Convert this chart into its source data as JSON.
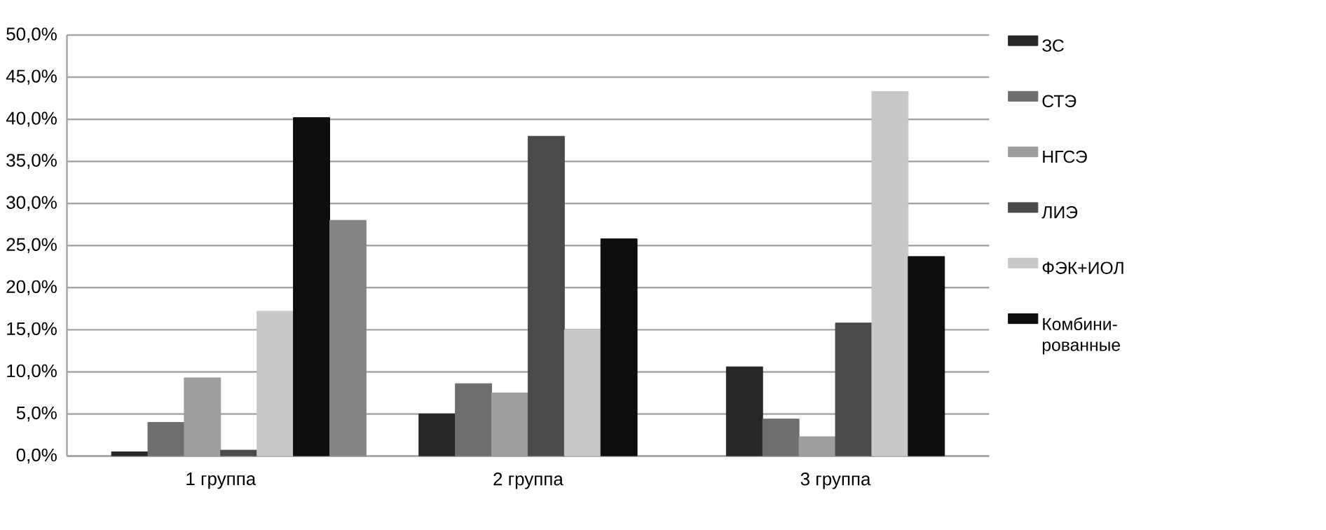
{
  "chart_data": {
    "type": "bar",
    "categories": [
      "1 группа",
      "2 группа",
      "3 группа"
    ],
    "series": [
      {
        "name": "ЗС",
        "color": "#262626",
        "values": [
          0.5,
          5.0,
          10.6
        ]
      },
      {
        "name": "СТЭ",
        "color": "#6e6e6e",
        "values": [
          4.0,
          8.6,
          4.4
        ]
      },
      {
        "name": "НГСЭ",
        "color": "#9e9e9e",
        "values": [
          9.3,
          7.5,
          2.3
        ]
      },
      {
        "name": "ЛИЭ",
        "color": "#4a4a4a",
        "values": [
          0.7,
          38.0,
          15.8
        ]
      },
      {
        "name": "ФЭК+ИОЛ",
        "color": "#c8c8c8",
        "values": [
          17.2,
          15.0,
          43.3
        ]
      },
      {
        "name": "Комбини-рованные",
        "color": "#0d0d0d",
        "values": [
          40.2,
          25.8,
          23.7
        ]
      },
      {
        "color": "#858585",
        "values": [
          28.0,
          null,
          null
        ]
      }
    ],
    "ylim": [
      0,
      50
    ],
    "yticks": [
      {
        "value": 0,
        "label": "0,0%"
      },
      {
        "value": 5,
        "label": "5,0%"
      },
      {
        "value": 10,
        "label": "10,0%"
      },
      {
        "value": 15,
        "label": "15,0%"
      },
      {
        "value": 20,
        "label": "20,0%"
      },
      {
        "value": 25,
        "label": "25,0%"
      },
      {
        "value": 30,
        "label": "30,0%"
      },
      {
        "value": 35,
        "label": "35,0%"
      },
      {
        "value": 40,
        "label": "40,0%"
      },
      {
        "value": 45,
        "label": "45,0%"
      },
      {
        "value": 50,
        "label": "50,0%"
      }
    ],
    "grid": "y",
    "legend": "right"
  }
}
